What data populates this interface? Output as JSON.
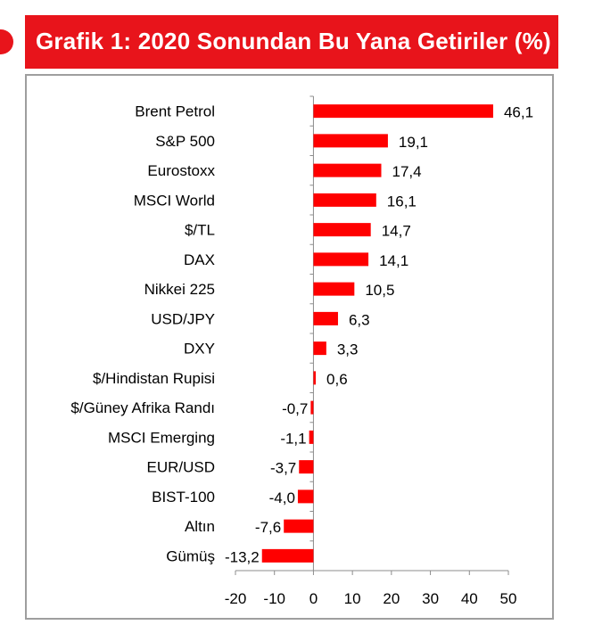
{
  "header": {
    "title": "Grafik 1: 2020 Sonundan Bu Yana Getiriler (%)"
  },
  "colors": {
    "accent": "#e8141b",
    "bar": "#ff0000",
    "axis": "#8c8c8c",
    "frame": "#9e9e9e",
    "text": "#000000"
  },
  "chart_data": {
    "type": "bar",
    "orientation": "horizontal",
    "title": "Grafik 1: 2020 Sonundan Bu Yana Getiriler (%)",
    "xlabel": "",
    "ylabel": "",
    "categories": [
      "Brent Petrol",
      "S&P 500",
      "Eurostoxx",
      "MSCI World",
      "$/TL",
      "DAX",
      "Nikkei 225",
      "USD/JPY",
      "DXY",
      "$/Hindistan Rupisi",
      "$/Güney Afrika Randı",
      "MSCI Emerging",
      "EUR/USD",
      "BIST-100",
      "Altın",
      "Gümüş"
    ],
    "values": [
      46.1,
      19.1,
      17.4,
      16.1,
      14.7,
      14.1,
      10.5,
      6.3,
      3.3,
      0.6,
      -0.7,
      -1.1,
      -3.7,
      -4.0,
      -7.6,
      -13.2
    ],
    "value_labels": [
      "46,1",
      "19,1",
      "17,4",
      "16,1",
      "14,7",
      "14,1",
      "10,5",
      "6,3",
      "3,3",
      "0,6",
      "-0,7",
      "-1,1",
      "-3,7",
      "-4,0",
      "-7,6",
      "-13,2"
    ],
    "xlim": [
      -20,
      50
    ],
    "xticks": [
      -20,
      -10,
      0,
      10,
      20,
      30,
      40,
      50
    ],
    "xtick_labels": [
      "-20",
      "-10",
      "0",
      "10",
      "20",
      "30",
      "40",
      "50"
    ],
    "grid": false,
    "legend": "none"
  }
}
